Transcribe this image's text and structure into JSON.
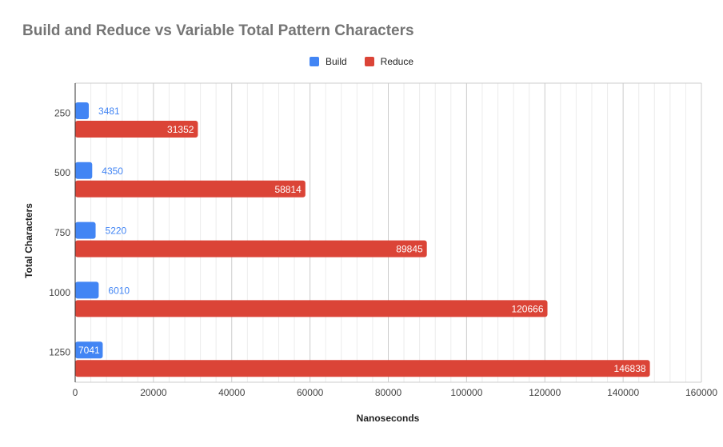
{
  "chart_data": {
    "type": "bar",
    "orientation": "horizontal",
    "title": "Build and Reduce vs Variable Total Pattern Characters",
    "xlabel": "Nanoseconds",
    "ylabel": "Total Characters",
    "categories": [
      "250",
      "500",
      "750",
      "1000",
      "1250"
    ],
    "series": [
      {
        "name": "Build",
        "color": "#4285f4",
        "values": [
          3481,
          4350,
          5220,
          6010,
          7041
        ]
      },
      {
        "name": "Reduce",
        "color": "#db4437",
        "values": [
          31352,
          58814,
          89845,
          120666,
          146838
        ]
      }
    ],
    "xlim": [
      0,
      160000
    ],
    "xticks": [
      "0",
      "20000",
      "40000",
      "60000",
      "80000",
      "100000",
      "120000",
      "140000",
      "160000"
    ],
    "grid": true,
    "legend_position": "top-center"
  }
}
